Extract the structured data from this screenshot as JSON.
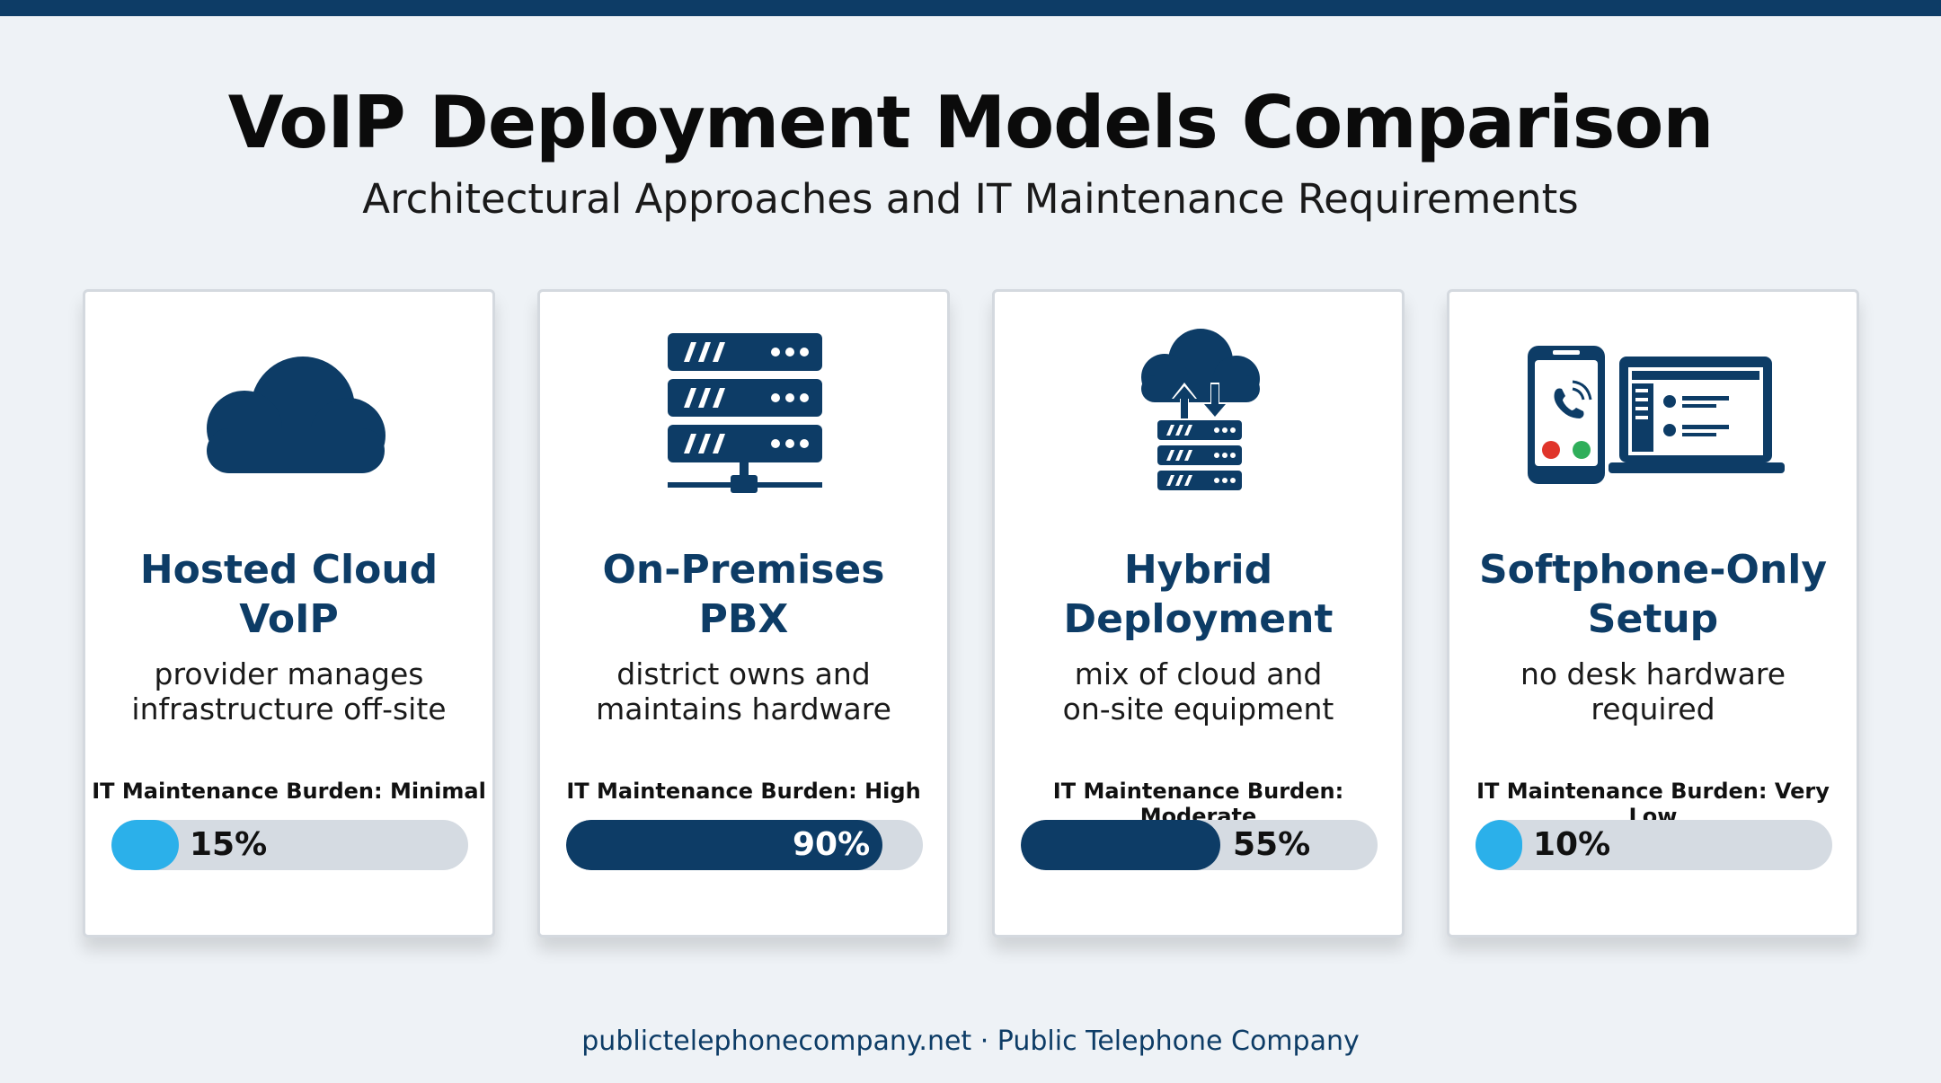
{
  "header": {
    "title": "VoIP Deployment Models Comparison",
    "subtitle": "Architectural Approaches and IT Maintenance Requirements"
  },
  "colors": {
    "dark_navy": "#0d3c66",
    "light_blue": "#2bb0ea",
    "track_gray": "#d5dbe2",
    "background": "#eef2f6"
  },
  "cards": [
    {
      "icon": "cloud-icon",
      "title_line1": "Hosted Cloud",
      "title_line2": "VoIP",
      "desc_line1": "provider manages",
      "desc_line2": "infrastructure off-site",
      "burden_label": "IT Maintenance Burden: Minimal",
      "percent_label": "15%",
      "percent": 15,
      "bar_color": "light"
    },
    {
      "icon": "server-rack-icon",
      "title_line1": "On-Premises",
      "title_line2": "PBX",
      "desc_line1": "district owns and",
      "desc_line2": "maintains hardware",
      "burden_label": "IT Maintenance Burden: High",
      "percent_label": "90%",
      "percent": 90,
      "bar_color": "dark"
    },
    {
      "icon": "cloud-server-sync-icon",
      "title_line1": "Hybrid",
      "title_line2": "Deployment",
      "desc_line1": "mix of cloud and",
      "desc_line2": "on-site equipment",
      "burden_label": "IT Maintenance Burden: Moderate",
      "percent_label": "55%",
      "percent": 55,
      "bar_color": "dark"
    },
    {
      "icon": "phone-and-laptop-icon",
      "title_line1": "Softphone-Only",
      "title_line2": "Setup",
      "desc_line1": "no desk hardware",
      "desc_line2": "required",
      "burden_label": "IT Maintenance Burden: Very Low",
      "percent_label": "10%",
      "percent": 10,
      "bar_color": "light"
    }
  ],
  "footer": {
    "text": "publictelephonecompany.net · Public Telephone Company"
  }
}
